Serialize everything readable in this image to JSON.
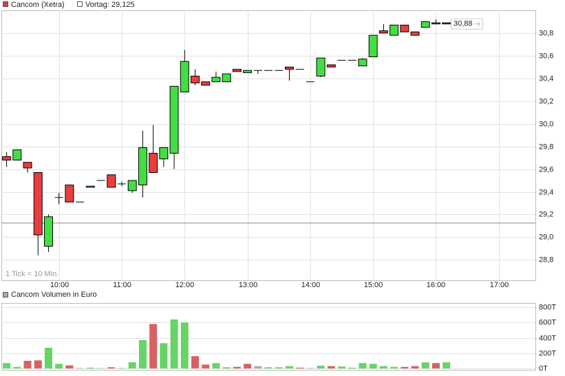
{
  "chart_data": [
    {
      "type": "candlestick",
      "series_name": "Cancom (Xetra)",
      "series_color": "#e03c3c",
      "reference_line": {
        "label": "Vortag: 29,125",
        "value": 29.125,
        "color": "#888888"
      },
      "annotation": "1 Tick = 10 Min.",
      "last_value": 30.88,
      "last_value_label": "30,88",
      "up_color": "#44dd44",
      "down_color": "#e83e3e",
      "x": [
        550,
        560,
        570,
        580,
        590,
        600,
        610,
        620,
        630,
        640,
        650,
        660,
        670,
        680,
        690,
        700,
        710,
        720,
        730,
        740,
        750,
        760,
        770,
        780,
        790,
        800,
        810,
        820,
        830,
        840,
        850,
        860,
        870,
        880,
        890,
        900,
        910,
        920,
        930,
        940,
        950,
        960,
        970
      ],
      "open": [
        29.71,
        29.68,
        29.66,
        29.57,
        28.92,
        29.35,
        29.46,
        29.31,
        29.44,
        29.5,
        29.55,
        29.47,
        29.41,
        29.46,
        29.74,
        29.69,
        29.74,
        30.28,
        30.42,
        30.37,
        30.37,
        30.37,
        30.48,
        30.45,
        30.47,
        30.47,
        30.47,
        30.5,
        30.48,
        30.37,
        30.42,
        30.52,
        30.56,
        30.56,
        30.51,
        30.59,
        30.82,
        30.78,
        30.87,
        30.81,
        30.85,
        30.89,
        30.89
      ],
      "high": [
        29.75,
        29.77,
        29.66,
        29.57,
        29.2,
        29.39,
        29.46,
        29.31,
        29.45,
        29.5,
        29.55,
        29.49,
        29.5,
        29.94,
        29.99,
        29.79,
        30.33,
        30.65,
        30.48,
        30.37,
        30.46,
        30.44,
        30.48,
        30.47,
        30.47,
        30.47,
        30.47,
        30.5,
        30.48,
        30.37,
        30.58,
        30.52,
        30.56,
        30.56,
        30.58,
        30.78,
        30.88,
        30.87,
        30.87,
        30.81,
        30.9,
        30.92,
        30.89
      ],
      "low": [
        29.62,
        29.68,
        29.57,
        28.84,
        28.87,
        29.29,
        29.31,
        29.31,
        29.44,
        29.5,
        29.44,
        29.45,
        29.39,
        29.35,
        29.57,
        29.62,
        29.6,
        30.28,
        30.34,
        30.34,
        30.37,
        30.37,
        30.46,
        30.45,
        30.44,
        30.47,
        30.47,
        30.38,
        30.48,
        30.37,
        30.41,
        30.5,
        30.56,
        30.56,
        30.51,
        30.59,
        30.8,
        30.78,
        30.81,
        30.78,
        30.85,
        30.88,
        30.88
      ],
      "close": [
        29.68,
        29.77,
        29.61,
        29.02,
        29.18,
        29.35,
        29.31,
        29.31,
        29.45,
        29.5,
        29.44,
        29.47,
        29.5,
        29.79,
        29.57,
        29.79,
        30.33,
        30.55,
        30.36,
        30.34,
        30.41,
        30.44,
        30.46,
        30.47,
        30.47,
        30.47,
        30.47,
        30.48,
        30.48,
        30.37,
        30.58,
        30.5,
        30.56,
        30.56,
        30.57,
        30.78,
        30.8,
        30.87,
        30.81,
        30.78,
        30.9,
        30.88,
        30.88
      ],
      "xlim": [
        545,
        1055
      ],
      "xticks": [
        {
          "value": 600,
          "label": "10:00"
        },
        {
          "value": 660,
          "label": "11:00"
        },
        {
          "value": 720,
          "label": "12:00"
        },
        {
          "value": 780,
          "label": "13:00"
        },
        {
          "value": 840,
          "label": "14:00"
        },
        {
          "value": 900,
          "label": "15:00"
        },
        {
          "value": 960,
          "label": "16:00"
        },
        {
          "value": 1020,
          "label": "17:00"
        }
      ],
      "ylim": [
        28.62,
        31.0
      ],
      "yticks": [
        {
          "value": 28.8,
          "label": "28,8"
        },
        {
          "value": 29.0,
          "label": "29,0"
        },
        {
          "value": 29.2,
          "label": "29,2"
        },
        {
          "value": 29.4,
          "label": "29,4"
        },
        {
          "value": 29.6,
          "label": "29,6"
        },
        {
          "value": 29.8,
          "label": "29,8"
        },
        {
          "value": 30.0,
          "label": "30,0"
        },
        {
          "value": 30.2,
          "label": "30,2"
        },
        {
          "value": 30.4,
          "label": "30,4"
        },
        {
          "value": 30.6,
          "label": "30,6"
        },
        {
          "value": 30.8,
          "label": "30,8"
        }
      ],
      "grid": true
    },
    {
      "type": "bar",
      "title": "Cancom Volumen in Euro",
      "title_color": "#aaaaaa",
      "x": [
        550,
        560,
        570,
        580,
        590,
        600,
        610,
        620,
        630,
        640,
        650,
        660,
        670,
        680,
        690,
        700,
        710,
        720,
        730,
        740,
        750,
        760,
        770,
        780,
        790,
        800,
        810,
        820,
        830,
        840,
        850,
        860,
        870,
        880,
        890,
        900,
        910,
        920,
        930,
        940,
        950,
        960,
        970
      ],
      "values": [
        70,
        20,
        100,
        105,
        270,
        60,
        40,
        5,
        10,
        5,
        15,
        5,
        80,
        370,
        580,
        330,
        640,
        600,
        160,
        50,
        70,
        15,
        20,
        60,
        30,
        15,
        15,
        30,
        10,
        5,
        35,
        30,
        25,
        10,
        70,
        60,
        30,
        20,
        20,
        30,
        80,
        70,
        80
      ],
      "colors": [
        "#66d466",
        "#66d466",
        "#d86262",
        "#d86262",
        "#66d466",
        "#66d466",
        "#d86262",
        "#aaaaaa",
        "#66d466",
        "#66d466",
        "#d86262",
        "#66d466",
        "#66d466",
        "#66d466",
        "#d86262",
        "#66d466",
        "#66d466",
        "#66d466",
        "#d86262",
        "#d86262",
        "#66d466",
        "#66d466",
        "#d86262",
        "#d86262",
        "#aaaaaa",
        "#66d466",
        "#66d466",
        "#66d466",
        "#d86262",
        "#aaaaaa",
        "#66d466",
        "#d86262",
        "#66d466",
        "#66d466",
        "#66d466",
        "#66d466",
        "#66d466",
        "#66d466",
        "#d86262",
        "#d86262",
        "#66d466",
        "#d86262",
        "#66d466"
      ],
      "xlim": [
        545,
        1055
      ],
      "ylim": [
        0,
        855
      ],
      "yticks": [
        {
          "value": 0,
          "label": "0T"
        },
        {
          "value": 200,
          "label": "200T"
        },
        {
          "value": 400,
          "label": "400T"
        },
        {
          "value": 600,
          "label": "600T"
        },
        {
          "value": 800,
          "label": "800T"
        }
      ],
      "grid": true
    }
  ]
}
